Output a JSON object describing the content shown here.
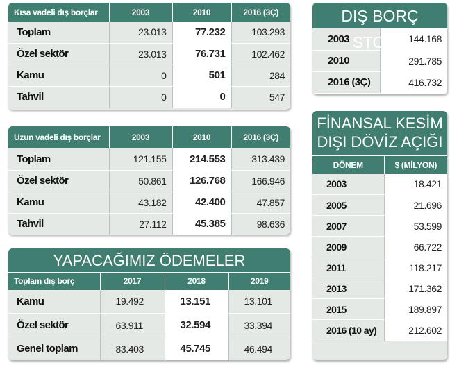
{
  "short_term": {
    "headers": [
      "Kısa vadeli dış borçlar",
      "2003",
      "2010",
      "2016 (3Ç)"
    ],
    "rows": [
      {
        "label": "Toplam",
        "v2003": "23.013",
        "v2010": "77.232",
        "v2016": "103.293"
      },
      {
        "label": "Özel sektör",
        "v2003": "23.013",
        "v2010": "76.731",
        "v2016": "102.462"
      },
      {
        "label": "Kamu",
        "v2003": "0",
        "v2010": "501",
        "v2016": "284"
      },
      {
        "label": "Tahvil",
        "v2003": "0",
        "v2010": "0",
        "v2016": "547"
      }
    ]
  },
  "long_term": {
    "headers": [
      "Uzun vadeli dış borçlar",
      "2003",
      "2010",
      "2016 (3Ç)"
    ],
    "rows": [
      {
        "label": "Toplam",
        "v2003": "121.155",
        "v2010": "214.553",
        "v2016": "313.439"
      },
      {
        "label": "Özel sektör",
        "v2003": "50.861",
        "v2010": "126.768",
        "v2016": "166.946"
      },
      {
        "label": "Kamu",
        "v2003": "43.182",
        "v2010": "42.400",
        "v2016": "47.857"
      },
      {
        "label": "Tahvil",
        "v2003": "27.112",
        "v2010": "45.385",
        "v2016": "98.636"
      }
    ]
  },
  "payments": {
    "title": "YAPACAĞIMIZ ÖDEMELER",
    "headers": [
      "Toplam dış borç",
      "2017",
      "2018",
      "2019"
    ],
    "rows": [
      {
        "label": "Kamu",
        "v1": "19.492",
        "v2": "13.151",
        "v3": "13.101"
      },
      {
        "label": "Özel sektör",
        "v1": "63.911",
        "v2": "32.594",
        "v3": "33.394"
      },
      {
        "label": "Genel toplam",
        "v1": "83.403",
        "v2": "45.745",
        "v3": "46.494"
      }
    ]
  },
  "stock": {
    "title": "DIŞ BORÇ STOKU",
    "rows": [
      {
        "label": "2003",
        "value": "144.168"
      },
      {
        "label": "2010",
        "value": "291.785"
      },
      {
        "label": "2016 (3Ç)",
        "value": "416.732"
      }
    ]
  },
  "fx_gap": {
    "title_line1": "FİNANSAL KESİM",
    "title_line2": "DIŞI DÖVİZ AÇIĞI",
    "headers": [
      "DÖNEM",
      "$ (MİLYON)"
    ],
    "rows": [
      {
        "label": "2003",
        "value": "18.421"
      },
      {
        "label": "2005",
        "value": "21.696"
      },
      {
        "label": "2007",
        "value": "53.599"
      },
      {
        "label": "2009",
        "value": "66.722"
      },
      {
        "label": "2011",
        "value": "118.217"
      },
      {
        "label": "2013",
        "value": "171.362"
      },
      {
        "label": "2015",
        "value": "189.897"
      },
      {
        "label": "2016 (10 ay)",
        "value": "212.602"
      }
    ]
  }
}
